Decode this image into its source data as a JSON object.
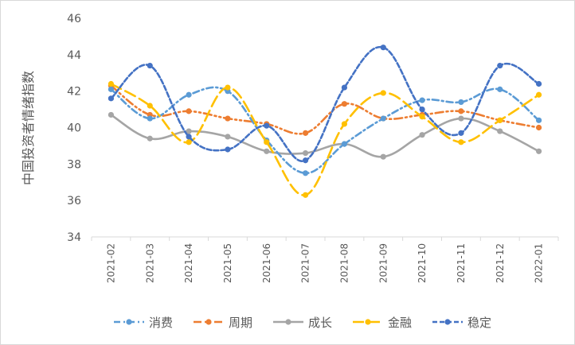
{
  "chart_data": {
    "type": "line",
    "title": "",
    "xlabel": "",
    "ylabel": "中国投资者情绪指数",
    "ylim": [
      34,
      46
    ],
    "yticks": [
      34,
      36,
      38,
      40,
      42,
      44,
      46
    ],
    "categories": [
      "2021-02",
      "2021-03",
      "2021-04",
      "2021-05",
      "2021-06",
      "2021-07",
      "2021-08",
      "2021-09",
      "2021-10",
      "2021-11",
      "2021-12",
      "2022-01"
    ],
    "grid": false,
    "legend_position": "bottom",
    "series": [
      {
        "name": "消费",
        "color": "#5b9bd5",
        "dash": "8 4 2 4",
        "values": [
          42.1,
          40.5,
          41.8,
          42.0,
          39.3,
          37.5,
          39.1,
          40.5,
          41.5,
          41.4,
          42.1,
          40.4
        ]
      },
      {
        "name": "周期",
        "color": "#ed7d31",
        "dash": "10 4 2 4 2 4",
        "values": [
          42.3,
          40.7,
          40.9,
          40.5,
          40.2,
          39.7,
          41.3,
          40.5,
          40.7,
          40.9,
          40.4,
          40.0
        ]
      },
      {
        "name": "成长",
        "color": "#a5a5a5",
        "dash": "",
        "values": [
          40.7,
          39.4,
          39.8,
          39.5,
          38.7,
          38.6,
          39.1,
          38.4,
          39.6,
          40.5,
          39.8,
          38.7
        ]
      },
      {
        "name": "金融",
        "color": "#ffc000",
        "dash": "14 6",
        "values": [
          42.4,
          41.2,
          39.2,
          42.2,
          39.2,
          36.3,
          40.2,
          41.9,
          40.6,
          39.2,
          40.4,
          41.8
        ]
      },
      {
        "name": "稳定",
        "color": "#4472c4",
        "dash": "6 3",
        "values": [
          41.6,
          43.4,
          39.5,
          38.8,
          40.1,
          38.2,
          42.2,
          44.4,
          41.0,
          39.7,
          43.4,
          42.4
        ]
      }
    ]
  }
}
